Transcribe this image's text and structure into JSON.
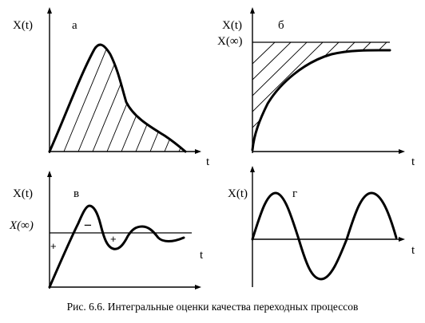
{
  "panels": {
    "a": {
      "y_label": "X(t)",
      "letter": "а",
      "x_label": "t"
    },
    "b": {
      "y_label": "X(t)",
      "asymptote_label": "X(∞)",
      "letter": "б",
      "x_label": "t"
    },
    "v": {
      "y_label": "X(t)",
      "asymptote_label": "X(∞)",
      "letter": "в",
      "x_label": "t",
      "signs": [
        "+",
        "−",
        "+"
      ]
    },
    "g": {
      "y_label": "X(t)",
      "letter": "г",
      "x_label": "t"
    }
  },
  "caption": "Рис. 6.6. Интегральные оценки качества переходных процессов"
}
